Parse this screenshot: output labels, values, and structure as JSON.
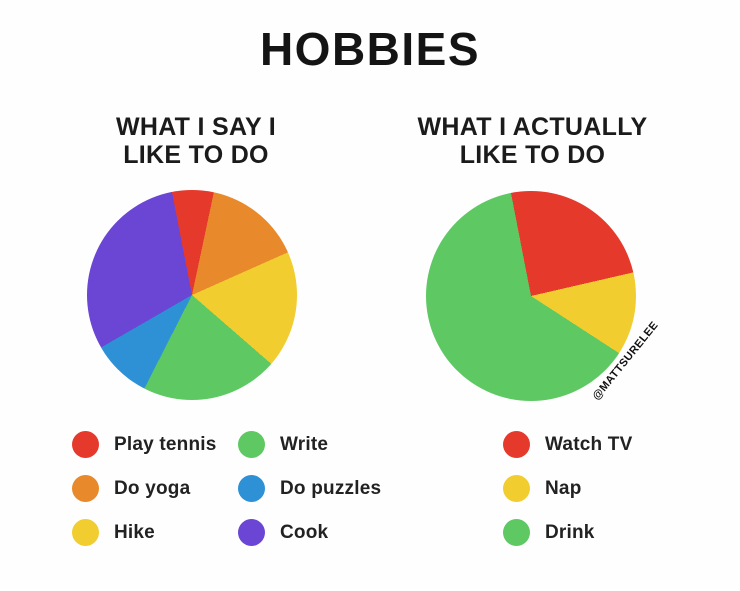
{
  "title": "HOBBIES",
  "watermark": "@MATTSURELEE",
  "chart_data": [
    {
      "type": "pie",
      "title": "WHAT I SAY I LIKE TO DO",
      "title_lines": [
        "WHAT I SAY I",
        "LIKE TO DO"
      ],
      "start_angle_deg": -11,
      "legend_position": "bottom-two-columns",
      "slices": [
        {
          "label": "Play tennis",
          "color": "#e5392c",
          "angle_deg": 23,
          "percent": 6.4
        },
        {
          "label": "Do yoga",
          "color": "#e8892b",
          "angle_deg": 54,
          "percent": 15.0
        },
        {
          "label": "Hike",
          "color": "#f1cd30",
          "angle_deg": 65,
          "percent": 18.1
        },
        {
          "label": "Write",
          "color": "#5ec863",
          "angle_deg": 76,
          "percent": 21.1
        },
        {
          "label": "Do puzzles",
          "color": "#2e91d5",
          "angle_deg": 33,
          "percent": 9.2
        },
        {
          "label": "Cook",
          "color": "#6b45d4",
          "angle_deg": 109,
          "percent": 30.3
        }
      ]
    },
    {
      "type": "pie",
      "title": "WHAT I ACTUALLY LIKE TO DO",
      "title_lines": [
        "WHAT I ACTUALLY",
        "LIKE TO DO"
      ],
      "start_angle_deg": -11,
      "legend_position": "bottom",
      "slices": [
        {
          "label": "Watch TV",
          "color": "#e5392c",
          "angle_deg": 88,
          "percent": 24.4
        },
        {
          "label": "Nap",
          "color": "#f1cd30",
          "angle_deg": 46,
          "percent": 12.8
        },
        {
          "label": "Drink",
          "color": "#5ec863",
          "angle_deg": 226,
          "percent": 62.8
        }
      ]
    }
  ]
}
